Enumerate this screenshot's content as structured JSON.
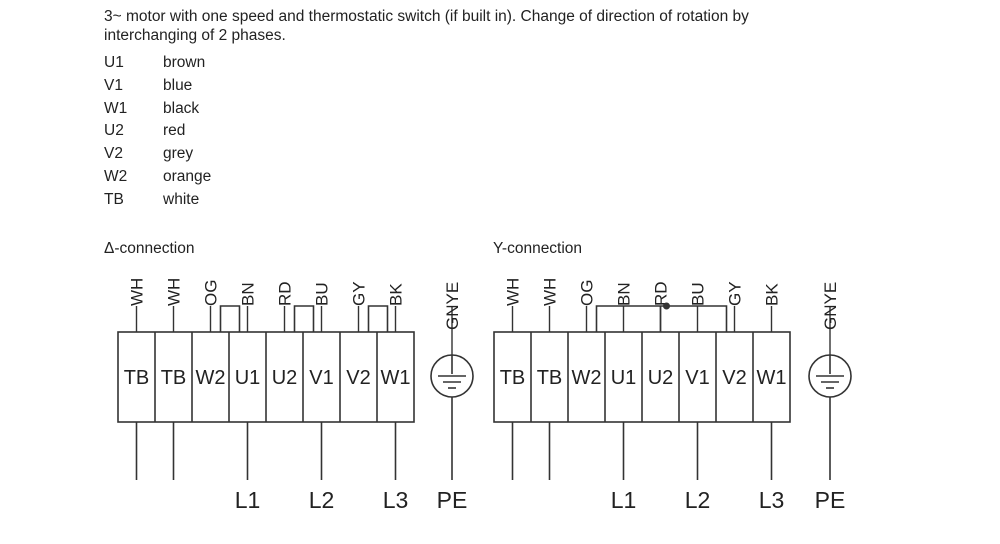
{
  "intro_text": "3~ motor with one speed and thermostatic switch (if built in). Change of direction of rotation by interchanging of 2 phases.",
  "legend": [
    {
      "code": "U1",
      "color": "brown"
    },
    {
      "code": "V1",
      "color": "blue"
    },
    {
      "code": "W1",
      "color": "black"
    },
    {
      "code": "U2",
      "color": "red"
    },
    {
      "code": "V2",
      "color": "grey"
    },
    {
      "code": "W2",
      "color": "orange"
    },
    {
      "code": "TB",
      "color": "white"
    }
  ],
  "delta": {
    "title": "Δ-connection",
    "wires": [
      "WH",
      "WH",
      "OG",
      "BN",
      "RD",
      "BU",
      "GY",
      "BK"
    ],
    "terminals": [
      "TB",
      "TB",
      "W2",
      "U1",
      "U2",
      "V1",
      "V2",
      "W1"
    ],
    "earth_wire": "GNYE",
    "lines": [
      "L1",
      "L2",
      "L3"
    ],
    "pe": "PE"
  },
  "wye": {
    "title": "Y-connection",
    "wires": [
      "WH",
      "WH",
      "OG",
      "BN",
      "RD",
      "BU",
      "GY",
      "BK"
    ],
    "terminals": [
      "TB",
      "TB",
      "W2",
      "U1",
      "U2",
      "V1",
      "V2",
      "W1"
    ],
    "earth_wire": "GNYE",
    "lines": [
      "L1",
      "L2",
      "L3"
    ],
    "pe": "PE"
  }
}
